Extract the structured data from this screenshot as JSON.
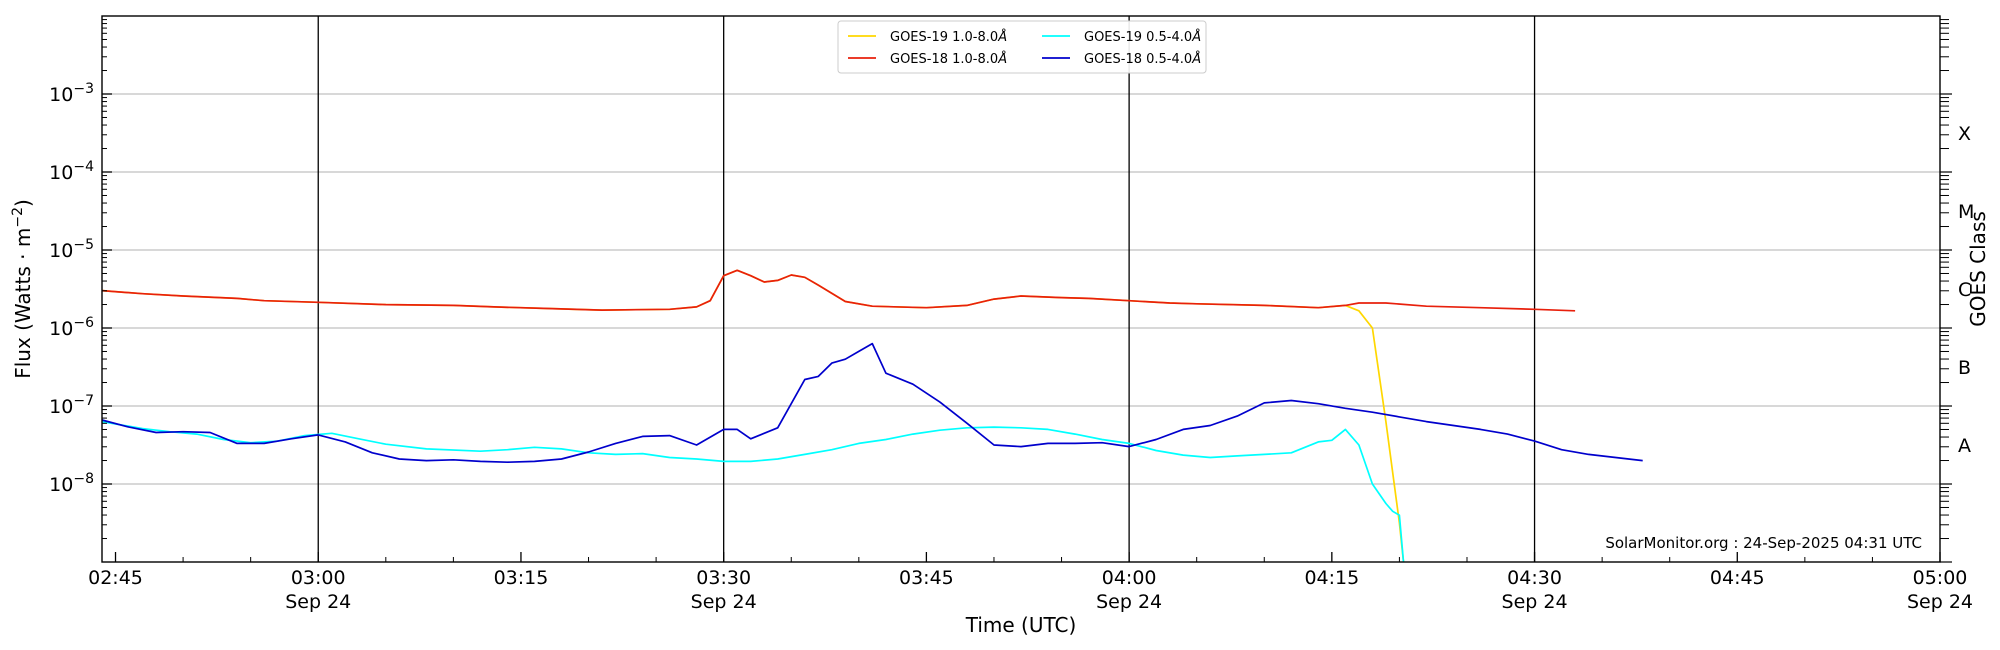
{
  "chart_data": {
    "type": "line",
    "xlabel": "Time (UTC)",
    "ylabel": "Flux (Watts · m",
    "ylabel_sup": "−2",
    "ylabel_close": ")",
    "right_ylabel": "GOES Class",
    "credit": "SolarMonitor.org : 24-Sep-2025 04:31 UTC",
    "x_range_minutes": [
      -16,
      120
    ],
    "x_ticks": [
      {
        "min": -15,
        "time": "02:45",
        "date": ""
      },
      {
        "min": 0,
        "time": "03:00",
        "date": "Sep 24"
      },
      {
        "min": 15,
        "time": "03:15",
        "date": ""
      },
      {
        "min": 30,
        "time": "03:30",
        "date": "Sep 24"
      },
      {
        "min": 45,
        "time": "03:45",
        "date": ""
      },
      {
        "min": 60,
        "time": "04:00",
        "date": "Sep 24"
      },
      {
        "min": 75,
        "time": "04:15",
        "date": ""
      },
      {
        "min": 90,
        "time": "04:30",
        "date": "Sep 24"
      },
      {
        "min": 105,
        "time": "04:45",
        "date": ""
      },
      {
        "min": 120,
        "time": "05:00",
        "date": "Sep 24"
      }
    ],
    "vertical_lines_minutes": [
      0,
      30,
      60,
      90
    ],
    "y_scale": "log",
    "y_range_log10": [
      -9,
      -2
    ],
    "y_ticks": [
      {
        "exp": -8,
        "label": "10",
        "sup": "−8"
      },
      {
        "exp": -7,
        "label": "10",
        "sup": "−7"
      },
      {
        "exp": -6,
        "label": "10",
        "sup": "−6"
      },
      {
        "exp": -5,
        "label": "10",
        "sup": "−5"
      },
      {
        "exp": -4,
        "label": "10",
        "sup": "−4"
      },
      {
        "exp": -3,
        "label": "10",
        "sup": "−3"
      }
    ],
    "goes_classes": [
      {
        "label": "A",
        "exp": -7.5
      },
      {
        "label": "B",
        "exp": -6.5
      },
      {
        "label": "C",
        "exp": -5.5
      },
      {
        "label": "M",
        "exp": -4.5
      },
      {
        "label": "X",
        "exp": -3.5
      }
    ],
    "grid": true,
    "legend_position": "top-center",
    "series": [
      {
        "name": "GOES-19 1.0-8.0",
        "color": "#FFD700",
        "points": [
          [
            -16,
            -5.52
          ],
          [
            -13,
            -5.56
          ],
          [
            -10,
            -5.59
          ],
          [
            -6,
            -5.62
          ],
          [
            -4,
            -5.65
          ],
          [
            0,
            -5.67
          ],
          [
            5,
            -5.7
          ],
          [
            10,
            -5.71
          ],
          [
            13,
            -5.73
          ],
          [
            17,
            -5.75
          ],
          [
            21,
            -5.77
          ],
          [
            26,
            -5.76
          ],
          [
            28,
            -5.73
          ],
          [
            29,
            -5.65
          ],
          [
            30,
            -5.33
          ],
          [
            31,
            -5.26
          ],
          [
            32,
            -5.33
          ],
          [
            33,
            -5.41
          ],
          [
            34,
            -5.39
          ],
          [
            35,
            -5.32
          ],
          [
            36,
            -5.35
          ],
          [
            37,
            -5.45
          ],
          [
            39,
            -5.66
          ],
          [
            41,
            -5.72
          ],
          [
            45,
            -5.74
          ],
          [
            48,
            -5.71
          ],
          [
            50,
            -5.63
          ],
          [
            52,
            -5.59
          ],
          [
            55,
            -5.61
          ],
          [
            57,
            -5.62
          ],
          [
            60,
            -5.65
          ],
          [
            63,
            -5.68
          ],
          [
            65,
            -5.69
          ],
          [
            70,
            -5.71
          ],
          [
            74,
            -5.74
          ],
          [
            76,
            -5.71
          ],
          [
            77,
            -5.78
          ],
          [
            78,
            -6.0
          ],
          [
            79,
            -7.2
          ],
          [
            80,
            -8.5
          ],
          [
            80.3,
            -9.0
          ]
        ]
      },
      {
        "name": "GOES-18 1.0-8.0",
        "color": "#E8200C",
        "points": [
          [
            -16,
            -5.52
          ],
          [
            -13,
            -5.56
          ],
          [
            -10,
            -5.59
          ],
          [
            -6,
            -5.62
          ],
          [
            -4,
            -5.65
          ],
          [
            0,
            -5.67
          ],
          [
            5,
            -5.7
          ],
          [
            10,
            -5.71
          ],
          [
            13,
            -5.73
          ],
          [
            17,
            -5.75
          ],
          [
            21,
            -5.77
          ],
          [
            26,
            -5.76
          ],
          [
            28,
            -5.73
          ],
          [
            29,
            -5.65
          ],
          [
            30,
            -5.33
          ],
          [
            31,
            -5.26
          ],
          [
            32,
            -5.33
          ],
          [
            33,
            -5.41
          ],
          [
            34,
            -5.39
          ],
          [
            35,
            -5.32
          ],
          [
            36,
            -5.35
          ],
          [
            37,
            -5.45
          ],
          [
            39,
            -5.66
          ],
          [
            41,
            -5.72
          ],
          [
            45,
            -5.74
          ],
          [
            48,
            -5.71
          ],
          [
            50,
            -5.63
          ],
          [
            52,
            -5.59
          ],
          [
            55,
            -5.61
          ],
          [
            57,
            -5.62
          ],
          [
            60,
            -5.65
          ],
          [
            63,
            -5.68
          ],
          [
            65,
            -5.69
          ],
          [
            70,
            -5.71
          ],
          [
            74,
            -5.74
          ],
          [
            76,
            -5.71
          ],
          [
            77,
            -5.68
          ],
          [
            79,
            -5.68
          ],
          [
            82,
            -5.72
          ],
          [
            86,
            -5.74
          ],
          [
            90,
            -5.76
          ],
          [
            93,
            -5.78
          ]
        ]
      },
      {
        "name": "GOES-19 0.5-4.0",
        "color": "#00FFFF",
        "points": [
          [
            -16,
            -7.2
          ],
          [
            -13,
            -7.29
          ],
          [
            -11,
            -7.33
          ],
          [
            -9,
            -7.36
          ],
          [
            -7,
            -7.43
          ],
          [
            -5,
            -7.47
          ],
          [
            -3,
            -7.45
          ],
          [
            -1,
            -7.38
          ],
          [
            1,
            -7.35
          ],
          [
            3,
            -7.42
          ],
          [
            5,
            -7.49
          ],
          [
            8,
            -7.55
          ],
          [
            12,
            -7.58
          ],
          [
            14,
            -7.56
          ],
          [
            16,
            -7.53
          ],
          [
            18,
            -7.55
          ],
          [
            20,
            -7.6
          ],
          [
            22,
            -7.62
          ],
          [
            24,
            -7.61
          ],
          [
            26,
            -7.66
          ],
          [
            28,
            -7.68
          ],
          [
            30,
            -7.71
          ],
          [
            32,
            -7.71
          ],
          [
            34,
            -7.68
          ],
          [
            36,
            -7.62
          ],
          [
            38,
            -7.56
          ],
          [
            40,
            -7.48
          ],
          [
            42,
            -7.43
          ],
          [
            44,
            -7.36
          ],
          [
            46,
            -7.31
          ],
          [
            48,
            -7.28
          ],
          [
            50,
            -7.27
          ],
          [
            52,
            -7.28
          ],
          [
            54,
            -7.3
          ],
          [
            56,
            -7.36
          ],
          [
            58,
            -7.43
          ],
          [
            60,
            -7.48
          ],
          [
            62,
            -7.57
          ],
          [
            64,
            -7.63
          ],
          [
            66,
            -7.66
          ],
          [
            68,
            -7.64
          ],
          [
            70,
            -7.62
          ],
          [
            72,
            -7.6
          ],
          [
            74,
            -7.46
          ],
          [
            75,
            -7.44
          ],
          [
            76,
            -7.3
          ],
          [
            77,
            -7.5
          ],
          [
            78,
            -8.0
          ],
          [
            79,
            -8.25
          ],
          [
            79.5,
            -8.35
          ],
          [
            80,
            -8.4
          ],
          [
            80.3,
            -9.0
          ]
        ]
      },
      {
        "name": "GOES-18 0.5-4.0",
        "color": "#0000CC",
        "points": [
          [
            -16,
            -7.18
          ],
          [
            -14,
            -7.27
          ],
          [
            -12,
            -7.34
          ],
          [
            -10,
            -7.33
          ],
          [
            -8,
            -7.34
          ],
          [
            -6,
            -7.48
          ],
          [
            -4,
            -7.48
          ],
          [
            -2,
            -7.42
          ],
          [
            0,
            -7.37
          ],
          [
            2,
            -7.46
          ],
          [
            4,
            -7.6
          ],
          [
            6,
            -7.68
          ],
          [
            8,
            -7.7
          ],
          [
            10,
            -7.69
          ],
          [
            12,
            -7.71
          ],
          [
            14,
            -7.72
          ],
          [
            16,
            -7.71
          ],
          [
            18,
            -7.68
          ],
          [
            20,
            -7.59
          ],
          [
            22,
            -7.48
          ],
          [
            24,
            -7.39
          ],
          [
            26,
            -7.38
          ],
          [
            28,
            -7.5
          ],
          [
            30,
            -7.3
          ],
          [
            31,
            -7.3
          ],
          [
            32,
            -7.42
          ],
          [
            34,
            -7.28
          ],
          [
            36,
            -6.66
          ],
          [
            37,
            -6.62
          ],
          [
            38,
            -6.45
          ],
          [
            39,
            -6.4
          ],
          [
            40,
            -6.3
          ],
          [
            41,
            -6.2
          ],
          [
            42,
            -6.58
          ],
          [
            43,
            -6.65
          ],
          [
            44,
            -6.72
          ],
          [
            46,
            -6.95
          ],
          [
            48,
            -7.22
          ],
          [
            50,
            -7.5
          ],
          [
            52,
            -7.52
          ],
          [
            54,
            -7.48
          ],
          [
            56,
            -7.48
          ],
          [
            58,
            -7.47
          ],
          [
            60,
            -7.52
          ],
          [
            62,
            -7.43
          ],
          [
            64,
            -7.3
          ],
          [
            66,
            -7.25
          ],
          [
            68,
            -7.13
          ],
          [
            70,
            -6.96
          ],
          [
            72,
            -6.93
          ],
          [
            74,
            -6.97
          ],
          [
            76,
            -7.03
          ],
          [
            78,
            -7.08
          ],
          [
            80,
            -7.14
          ],
          [
            82,
            -7.2
          ],
          [
            84,
            -7.25
          ],
          [
            86,
            -7.3
          ],
          [
            88,
            -7.36
          ],
          [
            90,
            -7.45
          ],
          [
            92,
            -7.56
          ],
          [
            94,
            -7.62
          ],
          [
            96,
            -7.66
          ],
          [
            98,
            -7.7
          ]
        ]
      }
    ]
  },
  "legend": {
    "angstrom_symbol": "Å"
  },
  "colors": {
    "goes19_long": "#FFD700",
    "goes18_long": "#E8200C",
    "goes19_short": "#00FFFF",
    "goes18_short": "#0000CC",
    "grid": "#b0b0b0",
    "axis": "#000000"
  }
}
